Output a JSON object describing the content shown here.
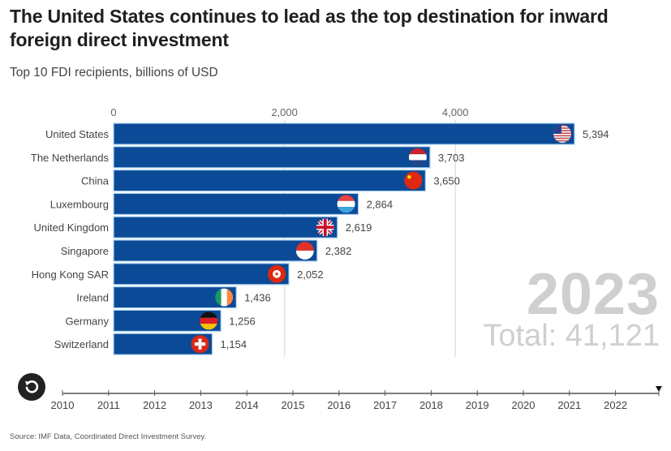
{
  "header": {
    "title": "The United States continues to lead as the top destination for inward foreign direct investment",
    "subtitle": "Top 10 FDI recipients, billions of USD"
  },
  "overlay": {
    "year": "2023",
    "total": "Total: 41,121"
  },
  "timeline": {
    "years": [
      "2010",
      "2011",
      "2012",
      "2013",
      "2014",
      "2015",
      "2016",
      "2017",
      "2018",
      "2019",
      "2020",
      "2021",
      "2022"
    ],
    "current": "2023",
    "replay_icon": "replay-icon"
  },
  "footer": {
    "source": "Source: IMF Data, Coordinated Direct Investment Survey."
  },
  "colors": {
    "bar": "#0b4a96",
    "bar_outline": "#a9d1ee",
    "overlay_text": "#cfcfcf"
  },
  "chart_data": {
    "type": "bar",
    "orientation": "horizontal",
    "title": "The United States continues to lead as the top destination for inward foreign direct investment",
    "subtitle": "Top 10 FDI recipients, billions of USD",
    "xlabel": "",
    "ylabel": "",
    "xlim": [
      0,
      5394
    ],
    "xticks": [
      0,
      2000,
      4000
    ],
    "xtick_labels": [
      "0",
      "2,000",
      "4,000"
    ],
    "grid": true,
    "categories": [
      "United States",
      "The Netherlands",
      "China",
      "Luxembourg",
      "United Kingdom",
      "Singapore",
      "Hong Kong SAR",
      "Ireland",
      "Germany",
      "Switzerland"
    ],
    "values": [
      5394,
      3703,
      3650,
      2864,
      2619,
      2382,
      2052,
      1436,
      1256,
      1154
    ],
    "value_labels": [
      "5,394",
      "3,703",
      "3,650",
      "2,864",
      "2,619",
      "2,382",
      "2,052",
      "1,436",
      "1,256",
      "1,154"
    ],
    "flags": [
      "us-flag-icon",
      "netherlands-flag-icon",
      "china-flag-icon",
      "luxembourg-flag-icon",
      "uk-flag-icon",
      "singapore-flag-icon",
      "hong-kong-flag-icon",
      "ireland-flag-icon",
      "germany-flag-icon",
      "switzerland-flag-icon"
    ],
    "annotations": [
      "2023",
      "Total: 41,121"
    ]
  }
}
